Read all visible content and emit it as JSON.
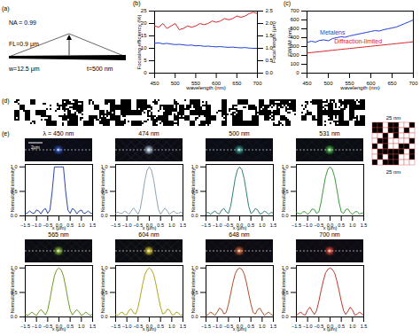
{
  "panels": {
    "a": {
      "label": "(a)",
      "na": "NA = 0.99",
      "fl": "FL=0.9 μm",
      "w": "w=12.5 μm",
      "t": "t=500 nm"
    },
    "d": {
      "label": "(d)",
      "pixel_size_labels": [
        "25 nm",
        "25 nm"
      ]
    },
    "e": {
      "label": "(e)",
      "scale_bar": "2μm"
    }
  },
  "chart_data": [
    {
      "type": "line",
      "title": "(b)",
      "xlabel": "wavelength (nm)",
      "ylabel": "Focusing efficiency (%)",
      "y2label": "Focal length (μm)",
      "x": [
        450,
        460,
        470,
        480,
        490,
        500,
        510,
        520,
        530,
        540,
        550,
        560,
        570,
        580,
        590,
        600,
        610,
        620,
        630,
        640,
        650,
        660,
        670,
        680,
        690,
        700
      ],
      "xlim": [
        450,
        700
      ],
      "xticks": [
        450,
        500,
        550,
        600,
        650,
        700
      ],
      "ylim": [
        0,
        25
      ],
      "yticks": [
        0,
        5,
        10,
        15,
        20,
        25
      ],
      "y2lim": [
        0,
        2.5
      ],
      "y2ticks": [
        0,
        0.5,
        1,
        1.5,
        2,
        2.5
      ],
      "series": [
        {
          "color": "#d62728",
          "values": [
            19,
            18.5,
            20,
            18,
            19,
            20,
            17.5,
            18,
            19,
            18.5,
            19,
            20,
            19.5,
            20,
            21,
            20.5,
            21,
            22,
            21.5,
            22,
            23,
            22.5,
            23,
            24,
            24.5,
            24
          ]
        },
        {
          "color": "#1f3fd6",
          "axis": "y2",
          "values": [
            1.2,
            1.22,
            1.18,
            1.2,
            1.17,
            1.15,
            1.16,
            1.14,
            1.12,
            1.13,
            1.1,
            1.11,
            1.08,
            1.09,
            1.07,
            1.06,
            1.07,
            1.05,
            1.04,
            1.05,
            1.03,
            1.02,
            1.03,
            1.01,
            1.0,
            1.0
          ]
        }
      ]
    },
    {
      "type": "line",
      "title": "(c)",
      "xlabel": "wavelength (nm)",
      "ylabel": "FWHM (nm)",
      "x": [
        450,
        460,
        470,
        480,
        490,
        500,
        510,
        520,
        530,
        540,
        550,
        560,
        570,
        580,
        590,
        600,
        610,
        620,
        630,
        640,
        650,
        660,
        670,
        680,
        690,
        700
      ],
      "xlim": [
        450,
        700
      ],
      "xticks": [
        450,
        500,
        550,
        600,
        650,
        700
      ],
      "ylim": [
        0,
        700
      ],
      "yticks": [
        0,
        100,
        200,
        300,
        400,
        500,
        600,
        700
      ],
      "series": [
        {
          "name": "Metalens",
          "color": "#1f3fd6",
          "values": [
            345,
            360,
            350,
            370,
            375,
            365,
            390,
            400,
            410,
            405,
            420,
            430,
            440,
            450,
            460,
            470,
            480,
            475,
            490,
            500,
            510,
            520,
            540,
            560,
            580,
            600
          ]
        },
        {
          "name": "Diffraction-limited",
          "color": "#d62728",
          "values": [
            227,
            232,
            237,
            242,
            247,
            253,
            258,
            263,
            268,
            273,
            278,
            283,
            288,
            293,
            298,
            303,
            308,
            313,
            318,
            323,
            328,
            333,
            338,
            343,
            348,
            354
          ]
        }
      ]
    },
    {
      "type": "line",
      "title": "λ = 450 nm",
      "xlabel": "x (μm)",
      "ylabel": "Normalized intensity",
      "x": [
        -1.5,
        -1.4,
        -1.3,
        -1.2,
        -1.1,
        -1,
        -0.9,
        -0.8,
        -0.7,
        -0.6,
        -0.5,
        -0.4,
        -0.3,
        -0.2,
        -0.1,
        0,
        0.1,
        0.2,
        0.3,
        0.4,
        0.5,
        0.6,
        0.7,
        0.8,
        0.9,
        1,
        1.1,
        1.2,
        1.3,
        1.4,
        1.5
      ],
      "xlim": [
        -1.5,
        1.5
      ],
      "xticks": [
        -1.5,
        -1,
        -0.5,
        0,
        0.5,
        1,
        1.5
      ],
      "ylim": [
        0,
        1.05
      ],
      "yticks": [
        0,
        0.5,
        1
      ],
      "series": [
        {
          "color": "#2747a8",
          "values": [
            0.04,
            0.06,
            0.1,
            0.06,
            0.05,
            0.12,
            0.1,
            0.04,
            0.12,
            0.15,
            0.05,
            0.12,
            0.5,
            1,
            1,
            1,
            1,
            1,
            0.5,
            0.12,
            0.05,
            0.15,
            0.12,
            0.04,
            0.1,
            0.12,
            0.05,
            0.06,
            0.1,
            0.06,
            0.04
          ]
        }
      ]
    },
    {
      "type": "line",
      "title": "474 nm",
      "xlabel": "x (μm)",
      "ylabel": "Normalized intensity",
      "x": [
        -1.5,
        -1.4,
        -1.3,
        -1.2,
        -1.1,
        -1,
        -0.9,
        -0.8,
        -0.7,
        -0.6,
        -0.5,
        -0.4,
        -0.3,
        -0.2,
        -0.1,
        0,
        0.1,
        0.2,
        0.3,
        0.4,
        0.5,
        0.6,
        0.7,
        0.8,
        0.9,
        1,
        1.1,
        1.2,
        1.3,
        1.4,
        1.5
      ],
      "xlim": [
        -1.5,
        1.5
      ],
      "xticks": [
        -1.5,
        -1,
        -0.5,
        0,
        0.5,
        1,
        1.5
      ],
      "ylim": [
        0,
        1.05
      ],
      "yticks": [
        0,
        0.5,
        1
      ],
      "series": [
        {
          "color": "#8fa3b5",
          "values": [
            0.05,
            0.08,
            0.05,
            0.05,
            0.1,
            0.07,
            0.03,
            0.1,
            0.16,
            0.1,
            0.03,
            0.15,
            0.42,
            0.72,
            0.93,
            1,
            0.93,
            0.72,
            0.42,
            0.15,
            0.03,
            0.1,
            0.16,
            0.1,
            0.03,
            0.07,
            0.1,
            0.05,
            0.05,
            0.08,
            0.05
          ]
        }
      ]
    },
    {
      "type": "line",
      "title": "500 nm",
      "xlabel": "x (μm)",
      "ylabel": "Normalized intensity",
      "x": [
        -1.5,
        -1.4,
        -1.3,
        -1.2,
        -1.1,
        -1,
        -0.9,
        -0.8,
        -0.7,
        -0.6,
        -0.5,
        -0.4,
        -0.3,
        -0.2,
        -0.1,
        0,
        0.1,
        0.2,
        0.3,
        0.4,
        0.5,
        0.6,
        0.7,
        0.8,
        0.9,
        1,
        1.1,
        1.2,
        1.3,
        1.4,
        1.5
      ],
      "xlim": [
        -1.5,
        1.5
      ],
      "xticks": [
        -1.5,
        -1,
        -0.5,
        0,
        0.5,
        1,
        1.5
      ],
      "ylim": [
        0,
        1.05
      ],
      "yticks": [
        0,
        0.5,
        1
      ],
      "series": [
        {
          "color": "#2a8078",
          "values": [
            0.06,
            0.07,
            0.03,
            0.07,
            0.1,
            0.05,
            0.04,
            0.12,
            0.15,
            0.08,
            0.05,
            0.2,
            0.48,
            0.76,
            0.94,
            1,
            0.94,
            0.76,
            0.48,
            0.2,
            0.05,
            0.08,
            0.15,
            0.12,
            0.04,
            0.05,
            0.1,
            0.07,
            0.03,
            0.07,
            0.06
          ]
        }
      ]
    },
    {
      "type": "line",
      "title": "531 nm",
      "xlabel": "x (μm)",
      "ylabel": "Normalized intensity",
      "x": [
        -1.5,
        -1.4,
        -1.3,
        -1.2,
        -1.1,
        -1,
        -0.9,
        -0.8,
        -0.7,
        -0.6,
        -0.5,
        -0.4,
        -0.3,
        -0.2,
        -0.1,
        0,
        0.1,
        0.2,
        0.3,
        0.4,
        0.5,
        0.6,
        0.7,
        0.8,
        0.9,
        1,
        1.1,
        1.2,
        1.3,
        1.4,
        1.5
      ],
      "xlim": [
        -1.5,
        1.5
      ],
      "xticks": [
        -1.5,
        -1,
        -0.5,
        0,
        0.5,
        1,
        1.5
      ],
      "ylim": [
        0,
        1.05
      ],
      "yticks": [
        0,
        0.5,
        1
      ],
      "series": [
        {
          "color": "#3a9a3a",
          "values": [
            0.07,
            0.05,
            0.04,
            0.09,
            0.08,
            0.03,
            0.07,
            0.14,
            0.13,
            0.05,
            0.08,
            0.28,
            0.55,
            0.8,
            0.95,
            1,
            0.95,
            0.8,
            0.55,
            0.28,
            0.08,
            0.05,
            0.13,
            0.14,
            0.07,
            0.03,
            0.08,
            0.09,
            0.04,
            0.05,
            0.07
          ]
        }
      ]
    },
    {
      "type": "line",
      "title": "565 nm",
      "xlabel": "x (μm)",
      "ylabel": "Normalized intensity",
      "x": [
        -1.5,
        -1.4,
        -1.3,
        -1.2,
        -1.1,
        -1,
        -0.9,
        -0.8,
        -0.7,
        -0.6,
        -0.5,
        -0.4,
        -0.3,
        -0.2,
        -0.1,
        0,
        0.1,
        0.2,
        0.3,
        0.4,
        0.5,
        0.6,
        0.7,
        0.8,
        0.9,
        1,
        1.1,
        1.2,
        1.3,
        1.4,
        1.5
      ],
      "xlim": [
        -1.5,
        1.5
      ],
      "xticks": [
        -1.5,
        -1,
        -0.5,
        0,
        0.5,
        1,
        1.5
      ],
      "ylim": [
        0,
        1.05
      ],
      "yticks": [
        0,
        0.5,
        1
      ],
      "series": [
        {
          "color": "#6f9a26",
          "values": [
            0.06,
            0.03,
            0.06,
            0.1,
            0.06,
            0.03,
            0.1,
            0.15,
            0.1,
            0.04,
            0.14,
            0.36,
            0.62,
            0.84,
            0.96,
            1,
            0.96,
            0.84,
            0.62,
            0.36,
            0.14,
            0.04,
            0.1,
            0.15,
            0.1,
            0.03,
            0.06,
            0.1,
            0.06,
            0.03,
            0.06
          ]
        }
      ]
    },
    {
      "type": "line",
      "title": "604 nm",
      "xlabel": "x (μm)",
      "ylabel": "Normalized intensity",
      "x": [
        -1.5,
        -1.4,
        -1.3,
        -1.2,
        -1.1,
        -1,
        -0.9,
        -0.8,
        -0.7,
        -0.6,
        -0.5,
        -0.4,
        -0.3,
        -0.2,
        -0.1,
        0,
        0.1,
        0.2,
        0.3,
        0.4,
        0.5,
        0.6,
        0.7,
        0.8,
        0.9,
        1,
        1.1,
        1.2,
        1.3,
        1.4,
        1.5
      ],
      "xlim": [
        -1.5,
        1.5
      ],
      "xticks": [
        -1.5,
        -1,
        -0.5,
        0,
        0.5,
        1,
        1.5
      ],
      "ylim": [
        0,
        1.05
      ],
      "yticks": [
        0,
        0.5,
        1
      ],
      "series": [
        {
          "color": "#b3a61c",
          "values": [
            0.05,
            0.03,
            0.08,
            0.1,
            0.04,
            0.05,
            0.14,
            0.16,
            0.08,
            0.06,
            0.2,
            0.42,
            0.66,
            0.86,
            0.96,
            1,
            0.96,
            0.86,
            0.66,
            0.42,
            0.2,
            0.06,
            0.08,
            0.16,
            0.14,
            0.05,
            0.04,
            0.1,
            0.08,
            0.03,
            0.05
          ]
        }
      ]
    },
    {
      "type": "line",
      "title": "648 nm",
      "xlabel": "x (μm)",
      "ylabel": "Normalized intensity",
      "x": [
        -1.5,
        -1.4,
        -1.3,
        -1.2,
        -1.1,
        -1,
        -0.9,
        -0.8,
        -0.7,
        -0.6,
        -0.5,
        -0.4,
        -0.3,
        -0.2,
        -0.1,
        0,
        0.1,
        0.2,
        0.3,
        0.4,
        0.5,
        0.6,
        0.7,
        0.8,
        0.9,
        1,
        1.1,
        1.2,
        1.3,
        1.4,
        1.5
      ],
      "xlim": [
        -1.5,
        1.5
      ],
      "xticks": [
        -1.5,
        -1,
        -0.5,
        0,
        0.5,
        1,
        1.5
      ],
      "ylim": [
        0,
        1.05
      ],
      "yticks": [
        0,
        0.5,
        1
      ],
      "series": [
        {
          "color": "#b0502a",
          "values": [
            0.03,
            0.05,
            0.1,
            0.07,
            0.03,
            0.1,
            0.18,
            0.15,
            0.06,
            0.09,
            0.26,
            0.48,
            0.7,
            0.88,
            0.97,
            1,
            0.97,
            0.88,
            0.7,
            0.48,
            0.26,
            0.09,
            0.06,
            0.15,
            0.18,
            0.1,
            0.03,
            0.07,
            0.1,
            0.05,
            0.03
          ]
        }
      ]
    },
    {
      "type": "line",
      "title": "700 nm",
      "xlabel": "x (μm)",
      "ylabel": "Normalized intensity",
      "x": [
        -1.5,
        -1.4,
        -1.3,
        -1.2,
        -1.1,
        -1,
        -0.9,
        -0.8,
        -0.7,
        -0.6,
        -0.5,
        -0.4,
        -0.3,
        -0.2,
        -0.1,
        0,
        0.1,
        0.2,
        0.3,
        0.4,
        0.5,
        0.6,
        0.7,
        0.8,
        0.9,
        1,
        1.1,
        1.2,
        1.3,
        1.4,
        1.5
      ],
      "xlim": [
        -1.5,
        1.5
      ],
      "xticks": [
        -1.5,
        -1,
        -0.5,
        0,
        0.5,
        1,
        1.5
      ],
      "ylim": [
        0,
        1.05
      ],
      "yticks": [
        0,
        0.5,
        1
      ],
      "series": [
        {
          "color": "#c0392b",
          "values": [
            0.03,
            0.07,
            0.1,
            0.05,
            0.04,
            0.14,
            0.2,
            0.12,
            0.05,
            0.13,
            0.32,
            0.54,
            0.74,
            0.9,
            0.97,
            1,
            0.97,
            0.9,
            0.74,
            0.54,
            0.32,
            0.13,
            0.05,
            0.12,
            0.2,
            0.14,
            0.04,
            0.05,
            0.1,
            0.07,
            0.03
          ]
        }
      ]
    }
  ]
}
